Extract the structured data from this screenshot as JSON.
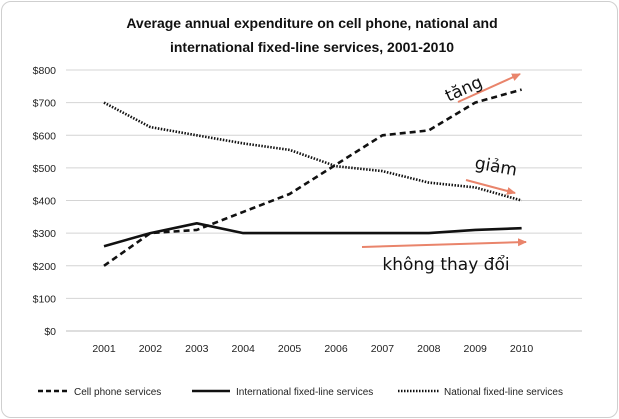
{
  "chart_data": {
    "type": "line",
    "title": "Average annual expenditure on cell phone, national and international fixed-line services, 2001-2010",
    "title_lines": [
      "Average annual expenditure on cell phone, national and",
      "international fixed-line services, 2001-2010"
    ],
    "categories": [
      "2001",
      "2002",
      "2003",
      "2004",
      "2005",
      "2006",
      "2007",
      "2008",
      "2009",
      "2010"
    ],
    "y_ticks": [
      "$0",
      "$100",
      "$200",
      "$300",
      "$400",
      "$500",
      "$600",
      "$700",
      "$800"
    ],
    "ylim": [
      0,
      800
    ],
    "grid": true,
    "legend_position": "bottom",
    "series": [
      {
        "name": "Cell phone services",
        "style": "dashed",
        "color": "#111111",
        "values": [
          200,
          300,
          310,
          365,
          420,
          510,
          600,
          615,
          700,
          740
        ]
      },
      {
        "name": "International fixed-line services",
        "style": "solid",
        "color": "#111111",
        "values": [
          260,
          300,
          330,
          300,
          300,
          300,
          300,
          300,
          310,
          315
        ]
      },
      {
        "name": "National fixed-line services",
        "style": "dotted",
        "color": "#111111",
        "values": [
          700,
          625,
          600,
          575,
          555,
          505,
          490,
          455,
          440,
          400
        ]
      }
    ],
    "annotations": [
      {
        "text": "tăng",
        "color": "#e9846b"
      },
      {
        "text": "giảm",
        "color": "#e9846b"
      },
      {
        "text": "không thay đổi",
        "color": "#e9846b"
      }
    ]
  }
}
